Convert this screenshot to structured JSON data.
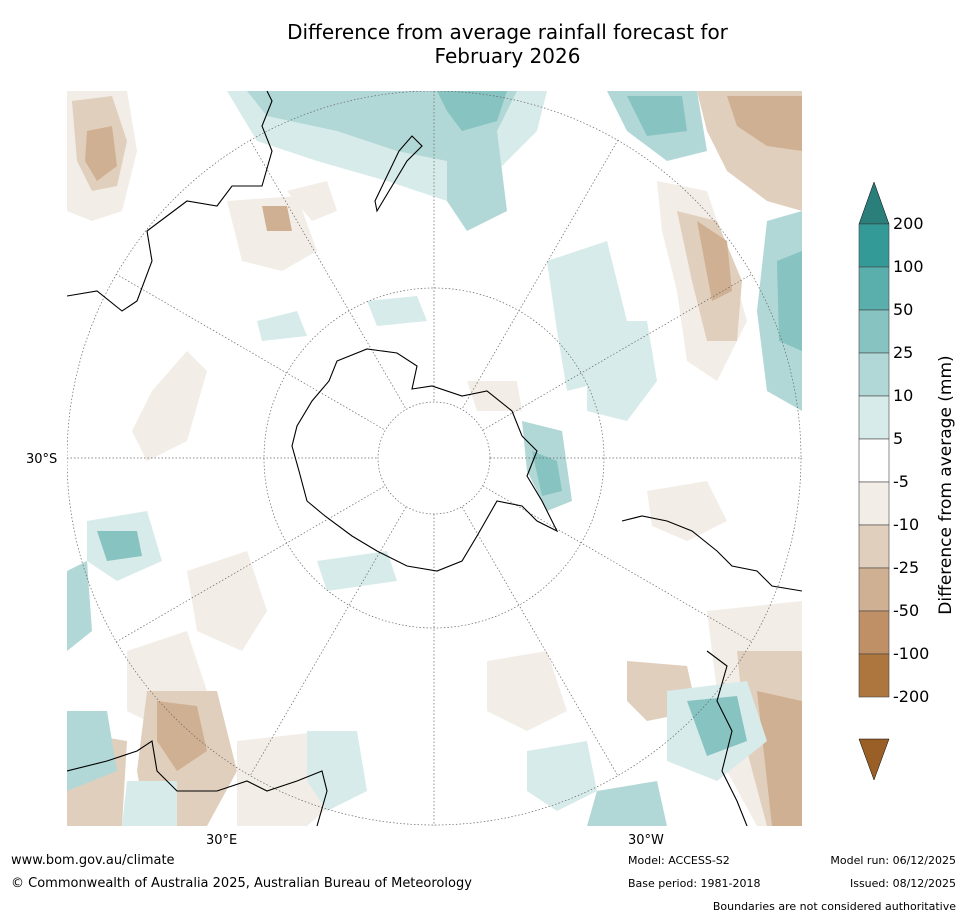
{
  "title": {
    "line1": "Difference from average rainfall forecast for",
    "line2": "February 2026"
  },
  "map": {
    "lat_label": "30°S",
    "lon_labels": [
      "30°E",
      "30°W"
    ]
  },
  "colorbar": {
    "label": "Difference from average (mm)",
    "ticks": [
      "200",
      "100",
      "50",
      "25",
      "10",
      "5",
      "-5",
      "-10",
      "-25",
      "-50",
      "-100",
      "-200"
    ],
    "colors": [
      "#2a7f7a",
      "#349a97",
      "#5aaeac",
      "#86c3c1",
      "#b1d8d6",
      "#d7ebea",
      "#ffffff",
      "#f2ede6",
      "#e1cfbd",
      "#d0b092",
      "#bf9066",
      "#ad763f",
      "#9a5f27"
    ]
  },
  "footer": {
    "website": "www.bom.gov.au/climate",
    "copyright": "© Commonwealth of Australia 2025, Australian Bureau of Meteorology",
    "model": "Model: ACCESS-S2",
    "base_period": "Base period: 1981-2018",
    "model_run": "Model run: 06/12/2025",
    "issued": "Issued: 08/12/2025",
    "disclaimer": "Boundaries are not considered authoritative"
  }
}
